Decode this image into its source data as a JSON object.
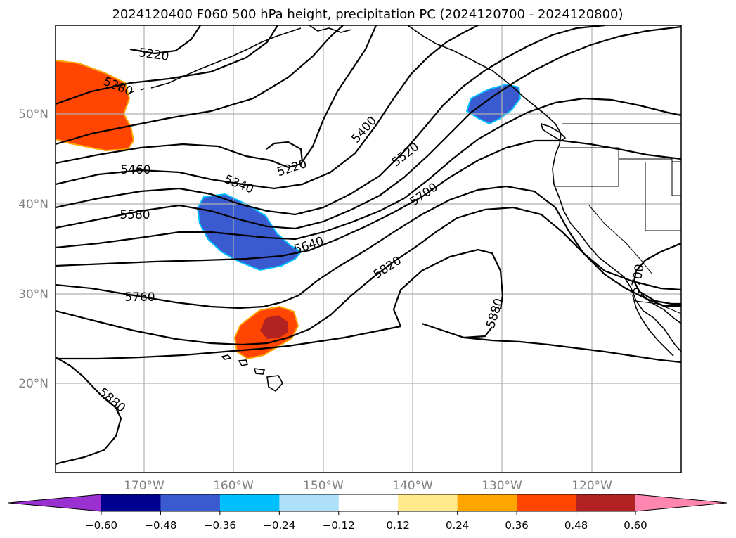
{
  "title": "2024120400 F060 500 hPa height, precipitation PC (2024120700 - 2024120800)",
  "lat_labels": [
    "50°N",
    "40°N",
    "30°N",
    "20°N"
  ],
  "lon_labels": [
    "170°W",
    "160°W",
    "150°W",
    "140°W",
    "130°W",
    "120°W"
  ],
  "contour_labels": [
    "5220",
    "5280",
    "5460",
    "5580",
    "5760",
    "5880",
    "5340",
    "5220",
    "5400",
    "5520",
    "5700",
    "5640",
    "5820",
    "5880",
    "5700"
  ],
  "colorbar": {
    "ticks": [
      "−0.60",
      "−0.48",
      "−0.36",
      "−0.24",
      "−0.12",
      "0.12",
      "0.24",
      "0.36",
      "0.48",
      "0.60"
    ],
    "colors": [
      "#9b30d0",
      "#000090",
      "#3a5bcf",
      "#00bfff",
      "#aee0fa",
      "#ffffff",
      "#ffe98a",
      "#ffa500",
      "#ff4500",
      "#b22222",
      "#ff86b0"
    ]
  },
  "anomaly_colors": {
    "wet_strong": "#ff4500",
    "wet_extreme": "#b22222",
    "dry_mid": "#3a5bcf",
    "edge_light_pos": "#ffe98a",
    "edge_mid_pos": "#ffa500",
    "edge_light_neg": "#00bfff"
  }
}
